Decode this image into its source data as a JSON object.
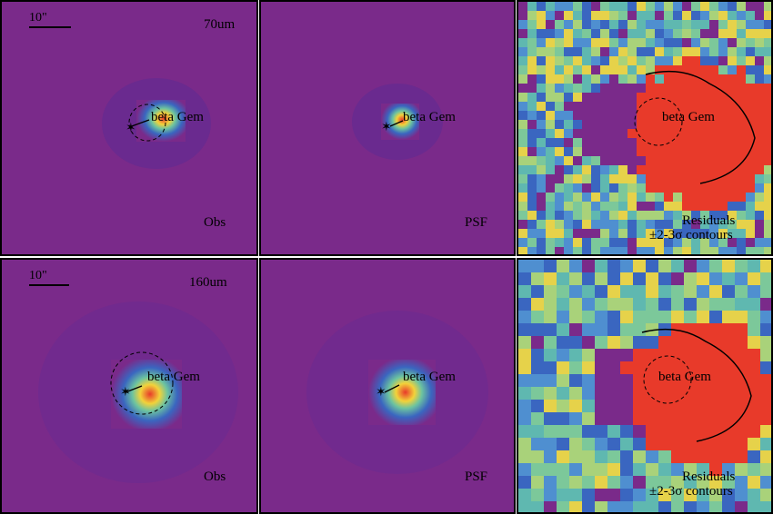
{
  "figure": {
    "rows": [
      {
        "band": "70um",
        "scalebar": "10\"",
        "panels": [
          {
            "kind": "Obs",
            "label": "Obs",
            "target": "beta Gem"
          },
          {
            "kind": "PSF",
            "label": "PSF",
            "target": "beta Gem"
          },
          {
            "kind": "Residuals",
            "label": "Residuals",
            "label2": "±2-3σ contours",
            "target": "beta Gem"
          }
        ]
      },
      {
        "band": "160um",
        "scalebar": "10\"",
        "panels": [
          {
            "kind": "Obs",
            "label": "Obs",
            "target": "beta Gem"
          },
          {
            "kind": "PSF",
            "label": "PSF",
            "target": "beta Gem"
          },
          {
            "kind": "Residuals",
            "label": "Residuals",
            "label2": "±2-3σ contours",
            "target": "beta Gem"
          }
        ]
      }
    ],
    "colors": {
      "background": "#7a2a8a",
      "residual_low": "#7a2a8a",
      "residual_mid": "#5fb8b0",
      "residual_high": "#e83a2a"
    }
  }
}
